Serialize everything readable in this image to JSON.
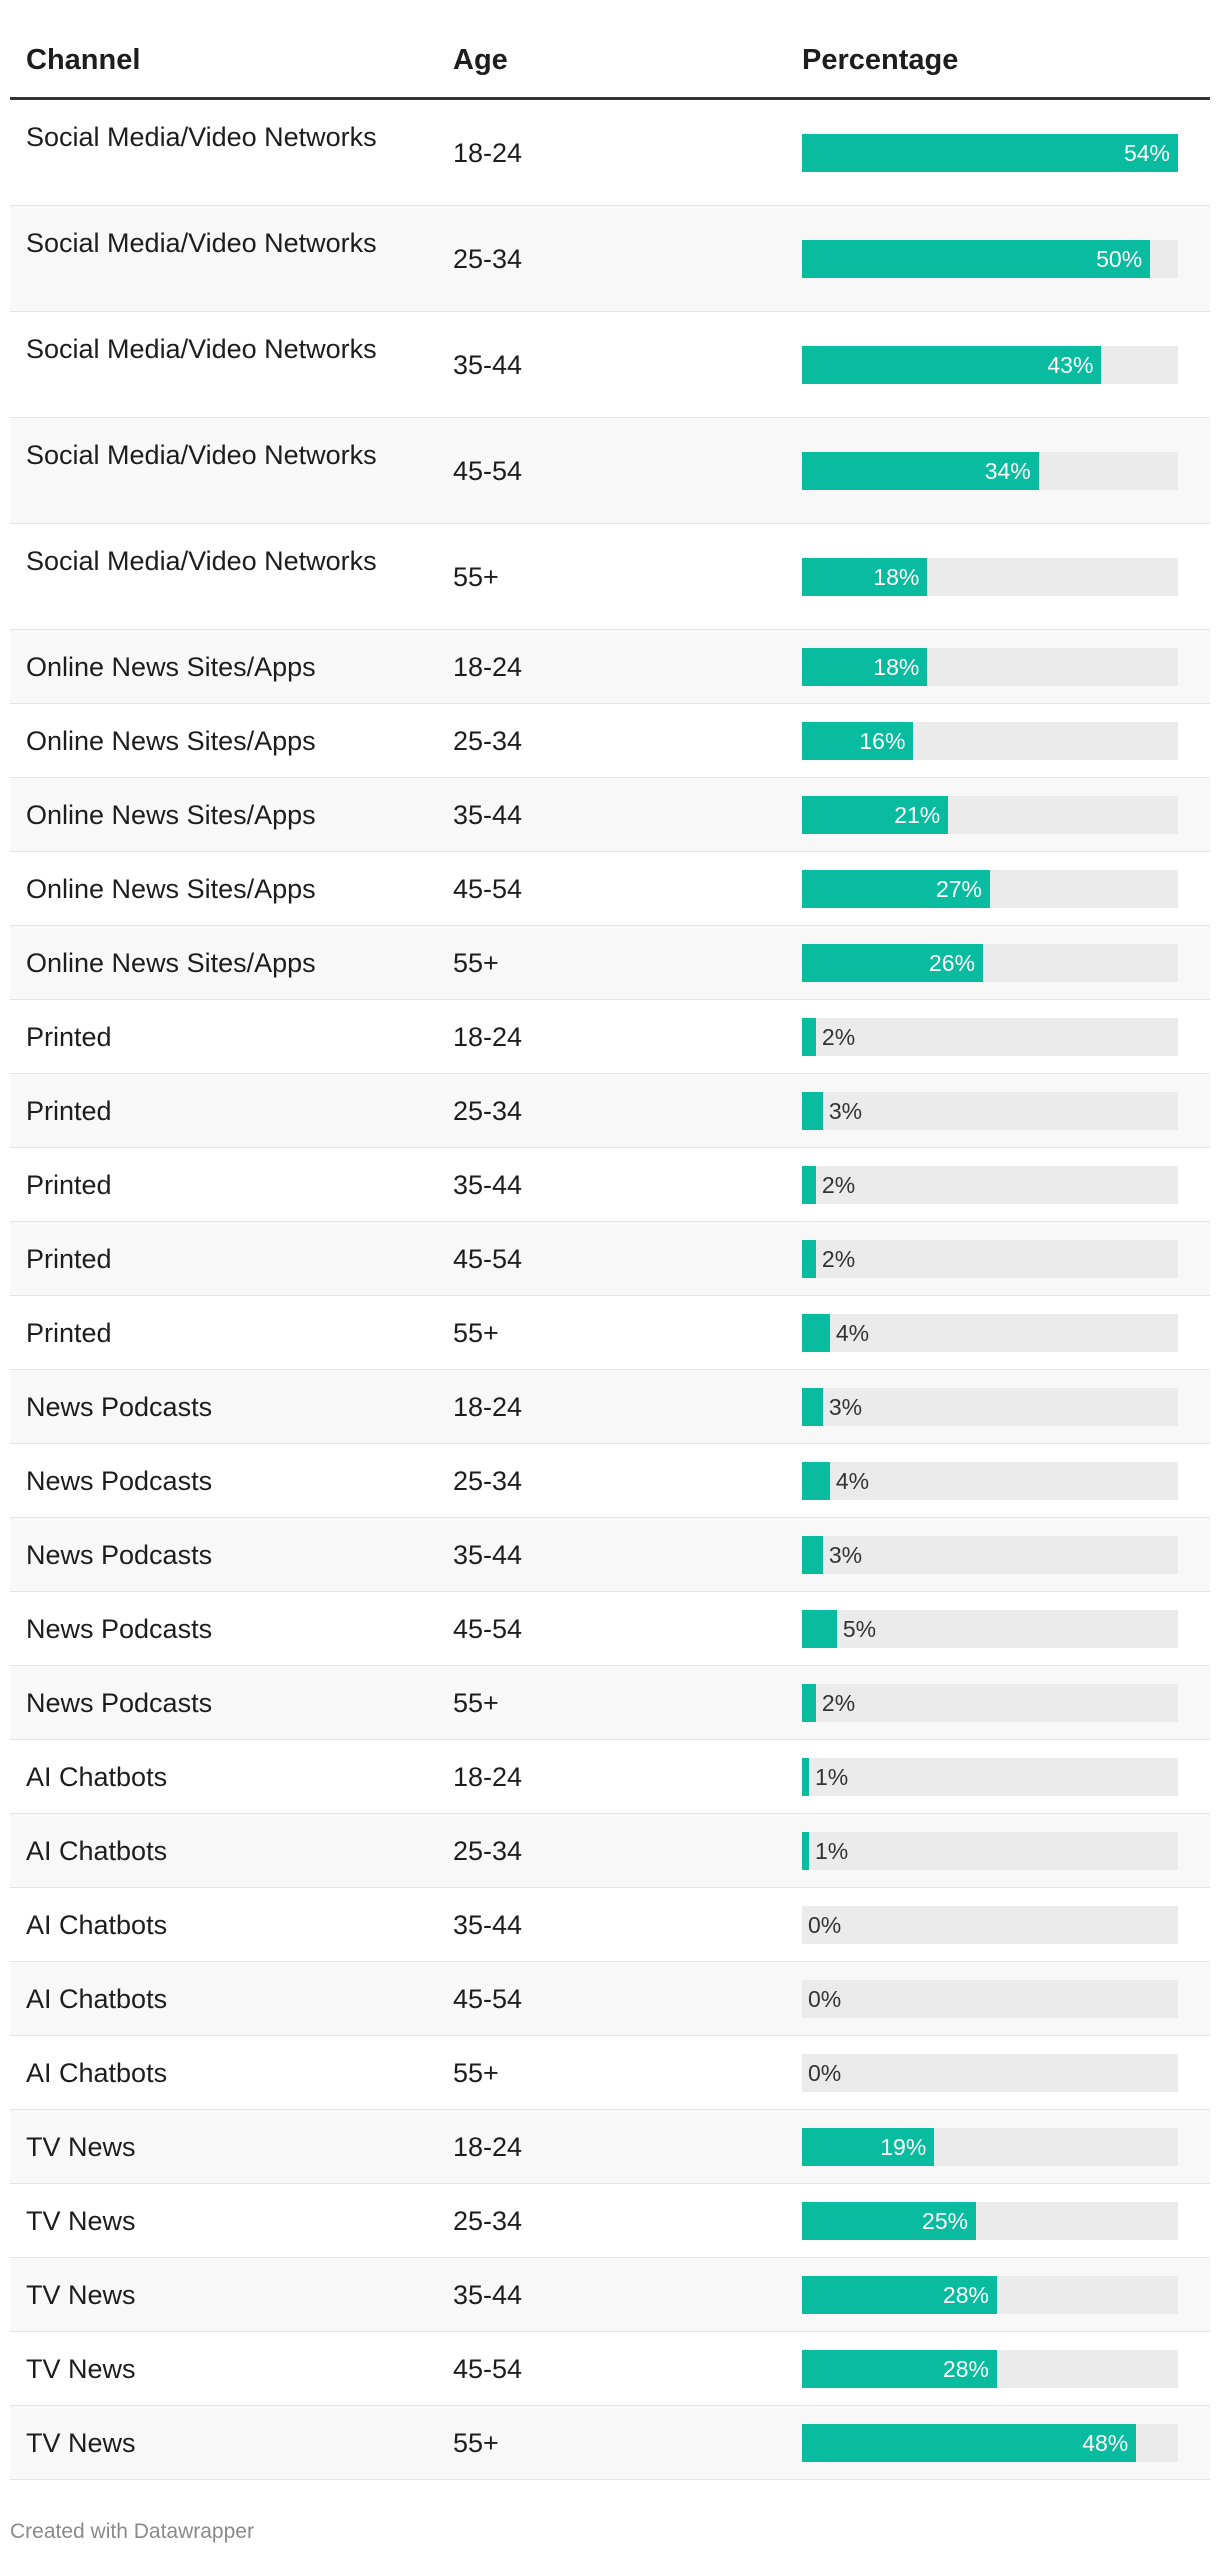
{
  "headers": {
    "channel": "Channel",
    "age": "Age",
    "percentage": "Percentage"
  },
  "colors": {
    "bar": "#09bb9f",
    "track": "#ebebeb"
  },
  "footer": "Created with Datawrapper",
  "chart_data": {
    "type": "table",
    "columns": [
      "Channel",
      "Age",
      "Percentage"
    ],
    "value_max": 54,
    "rows": [
      {
        "channel": "Social Media/Video Networks",
        "age": "18-24",
        "value": 54,
        "label": "54%"
      },
      {
        "channel": "Social Media/Video Networks",
        "age": "25-34",
        "value": 50,
        "label": "50%"
      },
      {
        "channel": "Social Media/Video Networks",
        "age": "35-44",
        "value": 43,
        "label": "43%"
      },
      {
        "channel": "Social Media/Video Networks",
        "age": "45-54",
        "value": 34,
        "label": "34%"
      },
      {
        "channel": "Social Media/Video Networks",
        "age": "55+",
        "value": 18,
        "label": "18%"
      },
      {
        "channel": "Online News Sites/Apps",
        "age": "18-24",
        "value": 18,
        "label": "18%"
      },
      {
        "channel": "Online News Sites/Apps",
        "age": "25-34",
        "value": 16,
        "label": "16%"
      },
      {
        "channel": "Online News Sites/Apps",
        "age": "35-44",
        "value": 21,
        "label": "21%"
      },
      {
        "channel": "Online News Sites/Apps",
        "age": "45-54",
        "value": 27,
        "label": "27%"
      },
      {
        "channel": "Online News Sites/Apps",
        "age": "55+",
        "value": 26,
        "label": "26%"
      },
      {
        "channel": "Printed",
        "age": "18-24",
        "value": 2,
        "label": "2%"
      },
      {
        "channel": "Printed",
        "age": "25-34",
        "value": 3,
        "label": "3%"
      },
      {
        "channel": "Printed",
        "age": "35-44",
        "value": 2,
        "label": "2%"
      },
      {
        "channel": "Printed",
        "age": "45-54",
        "value": 2,
        "label": "2%"
      },
      {
        "channel": "Printed",
        "age": "55+",
        "value": 4,
        "label": "4%"
      },
      {
        "channel": "News Podcasts",
        "age": "18-24",
        "value": 3,
        "label": "3%"
      },
      {
        "channel": "News Podcasts",
        "age": "25-34",
        "value": 4,
        "label": "4%"
      },
      {
        "channel": "News Podcasts",
        "age": "35-44",
        "value": 3,
        "label": "3%"
      },
      {
        "channel": "News Podcasts",
        "age": "45-54",
        "value": 5,
        "label": "5%"
      },
      {
        "channel": "News Podcasts",
        "age": "55+",
        "value": 2,
        "label": "2%"
      },
      {
        "channel": "AI Chatbots",
        "age": "18-24",
        "value": 1,
        "label": "1%"
      },
      {
        "channel": "AI Chatbots",
        "age": "25-34",
        "value": 1,
        "label": "1%"
      },
      {
        "channel": "AI Chatbots",
        "age": "35-44",
        "value": 0,
        "label": "0%"
      },
      {
        "channel": "AI Chatbots",
        "age": "45-54",
        "value": 0,
        "label": "0%"
      },
      {
        "channel": "AI Chatbots",
        "age": "55+",
        "value": 0,
        "label": "0%"
      },
      {
        "channel": "TV News",
        "age": "18-24",
        "value": 19,
        "label": "19%"
      },
      {
        "channel": "TV News",
        "age": "25-34",
        "value": 25,
        "label": "25%"
      },
      {
        "channel": "TV News",
        "age": "35-44",
        "value": 28,
        "label": "28%"
      },
      {
        "channel": "TV News",
        "age": "45-54",
        "value": 28,
        "label": "28%"
      },
      {
        "channel": "TV News",
        "age": "55+",
        "value": 48,
        "label": "48%"
      }
    ]
  }
}
